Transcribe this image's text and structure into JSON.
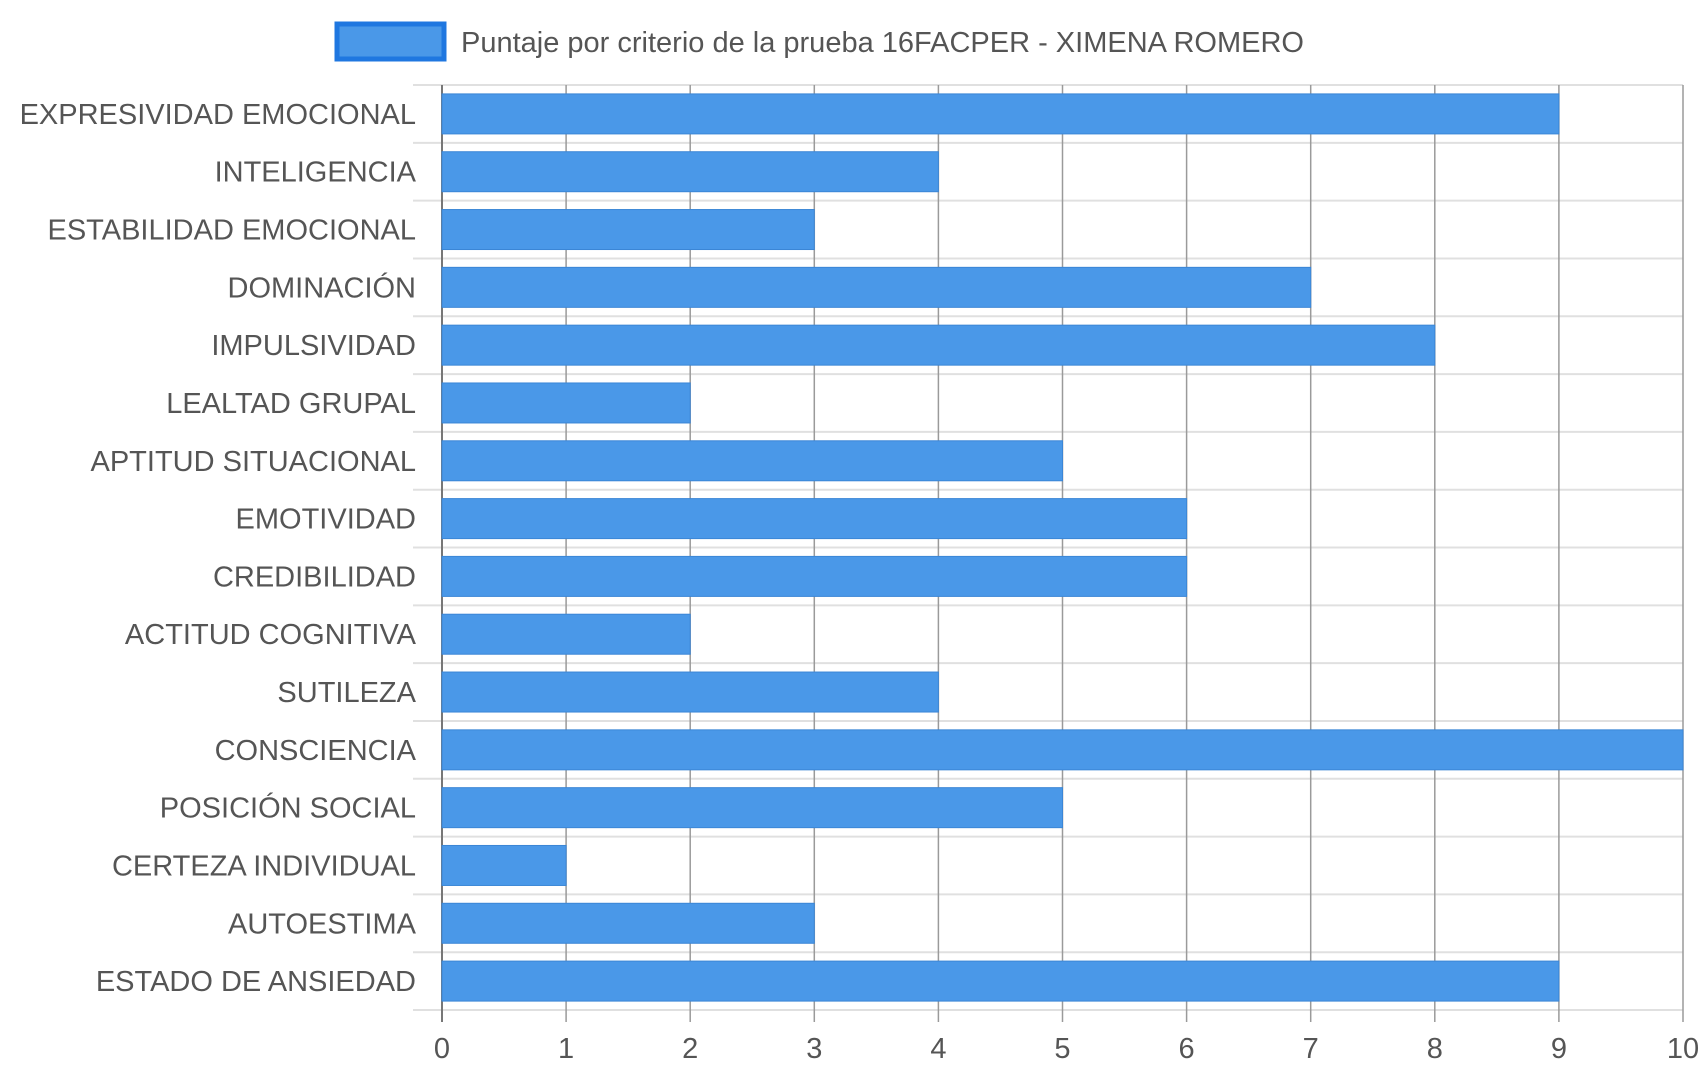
{
  "colors": {
    "bar_fill": "#4a98e8",
    "bar_stroke": "#3b86d6",
    "legend_fill": "#4a98e8",
    "legend_stroke": "#1f77e0",
    "grid_vertical": "#9a9a9a",
    "grid_horizontal": "#e0e0e0",
    "text": "#555555"
  },
  "chart_data": {
    "type": "bar",
    "orientation": "horizontal",
    "categories": [
      "EXPRESIVIDAD EMOCIONAL",
      "INTELIGENCIA",
      "ESTABILIDAD EMOCIONAL",
      "DOMINACIÓN",
      "IMPULSIVIDAD",
      "LEALTAD GRUPAL",
      "APTITUD SITUACIONAL",
      "EMOTIVIDAD",
      "CREDIBILIDAD",
      "ACTITUD COGNITIVA",
      "SUTILEZA",
      "CONSCIENCIA",
      "POSICIÓN SOCIAL",
      "CERTEZA INDIVIDUAL",
      "AUTOESTIMA",
      "ESTADO DE ANSIEDAD"
    ],
    "series": [
      {
        "name": "Puntaje por criterio de la prueba 16FACPER - XIMENA ROMERO",
        "values": [
          9,
          4,
          3,
          7,
          8,
          2,
          5,
          6,
          6,
          2,
          4,
          10,
          5,
          1,
          3,
          9
        ]
      }
    ],
    "xticks": [
      "0",
      "1",
      "2",
      "3",
      "4",
      "5",
      "6",
      "7",
      "8",
      "9",
      "10"
    ],
    "xlim": [
      0,
      10
    ],
    "grid": true,
    "legend_position": "top-center"
  }
}
